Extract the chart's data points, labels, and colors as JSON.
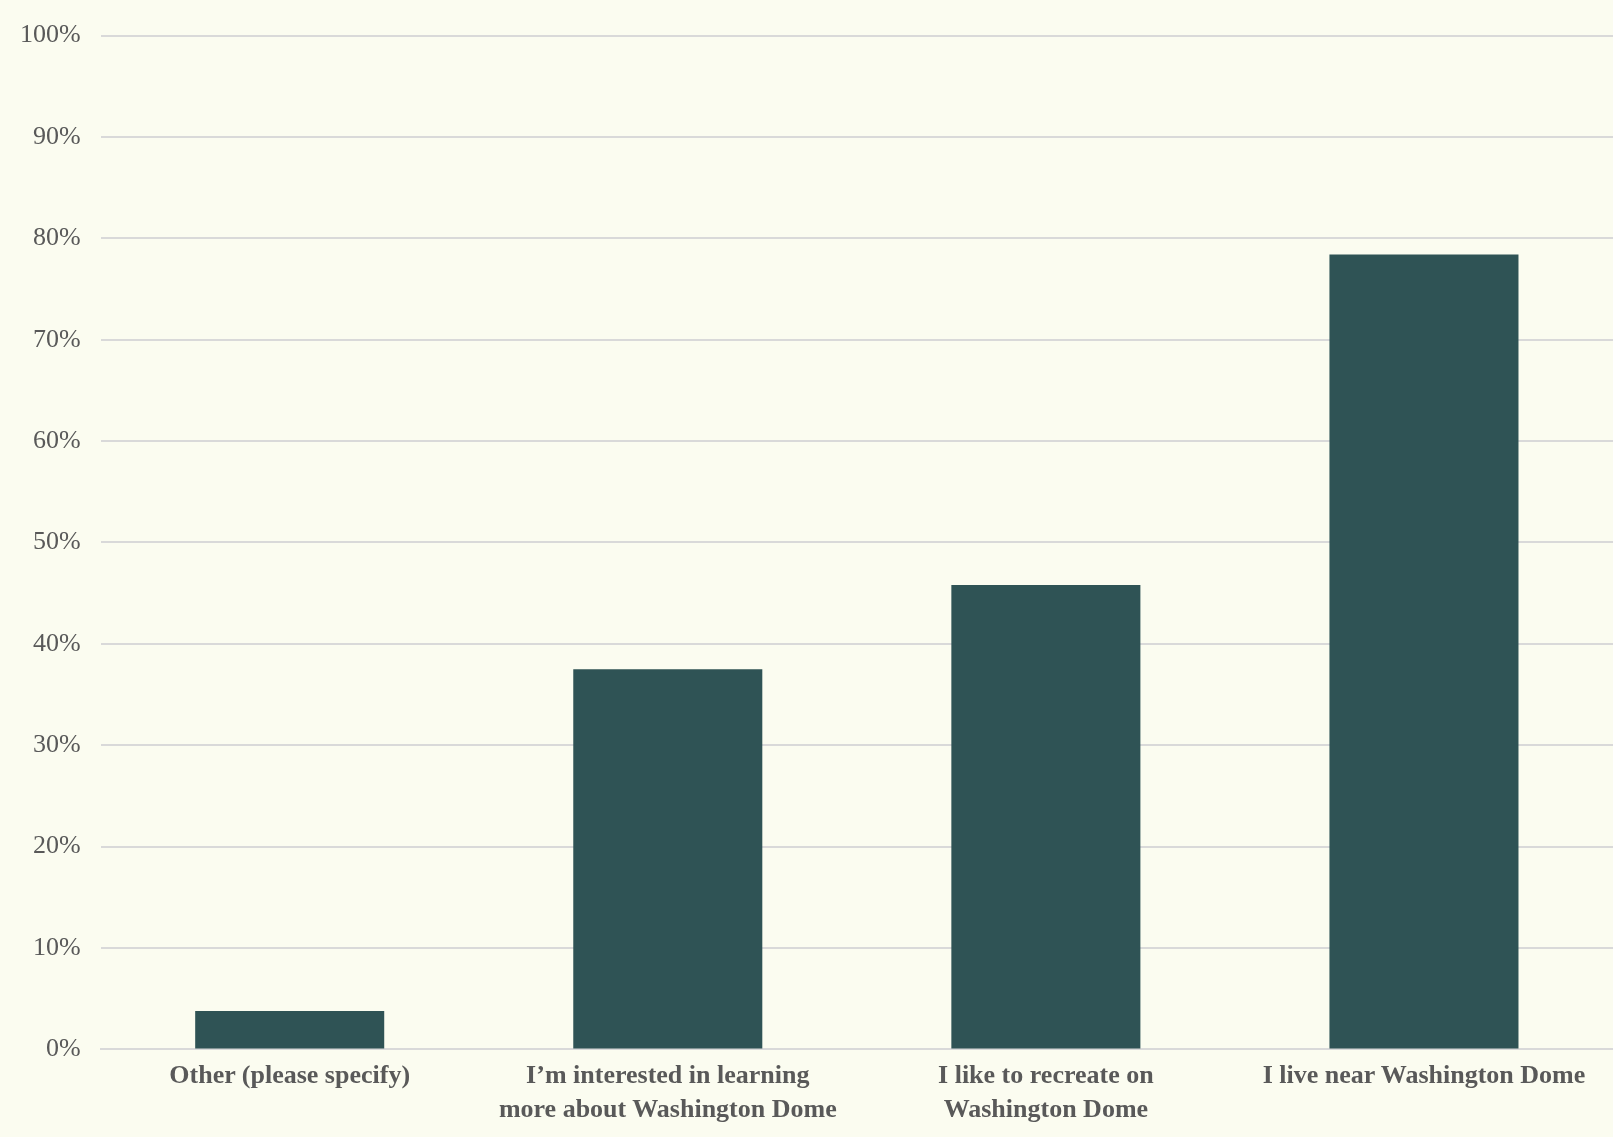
{
  "chart_data": {
    "type": "bar",
    "categories": [
      "Other (please specify)",
      "I’m interested in learning more about Washington Dome",
      "I like to recreate on Washington Dome",
      "I live near Washington Dome"
    ],
    "values": [
      3.8,
      37.5,
      45.8,
      78.4
    ],
    "color": "#2f5355",
    "ylim": [
      0,
      100
    ],
    "yticks": [
      {
        "value": 0,
        "label": "0%"
      },
      {
        "value": 10,
        "label": "10%"
      },
      {
        "value": 20,
        "label": "20%"
      },
      {
        "value": 30,
        "label": "30%"
      },
      {
        "value": 40,
        "label": "40%"
      },
      {
        "value": 50,
        "label": "50%"
      },
      {
        "value": 60,
        "label": "60%"
      },
      {
        "value": 70,
        "label": "70%"
      },
      {
        "value": 80,
        "label": "80%"
      },
      {
        "value": 90,
        "label": "90%"
      },
      {
        "value": 100,
        "label": "100%"
      }
    ],
    "grid": "y",
    "legend": false
  }
}
